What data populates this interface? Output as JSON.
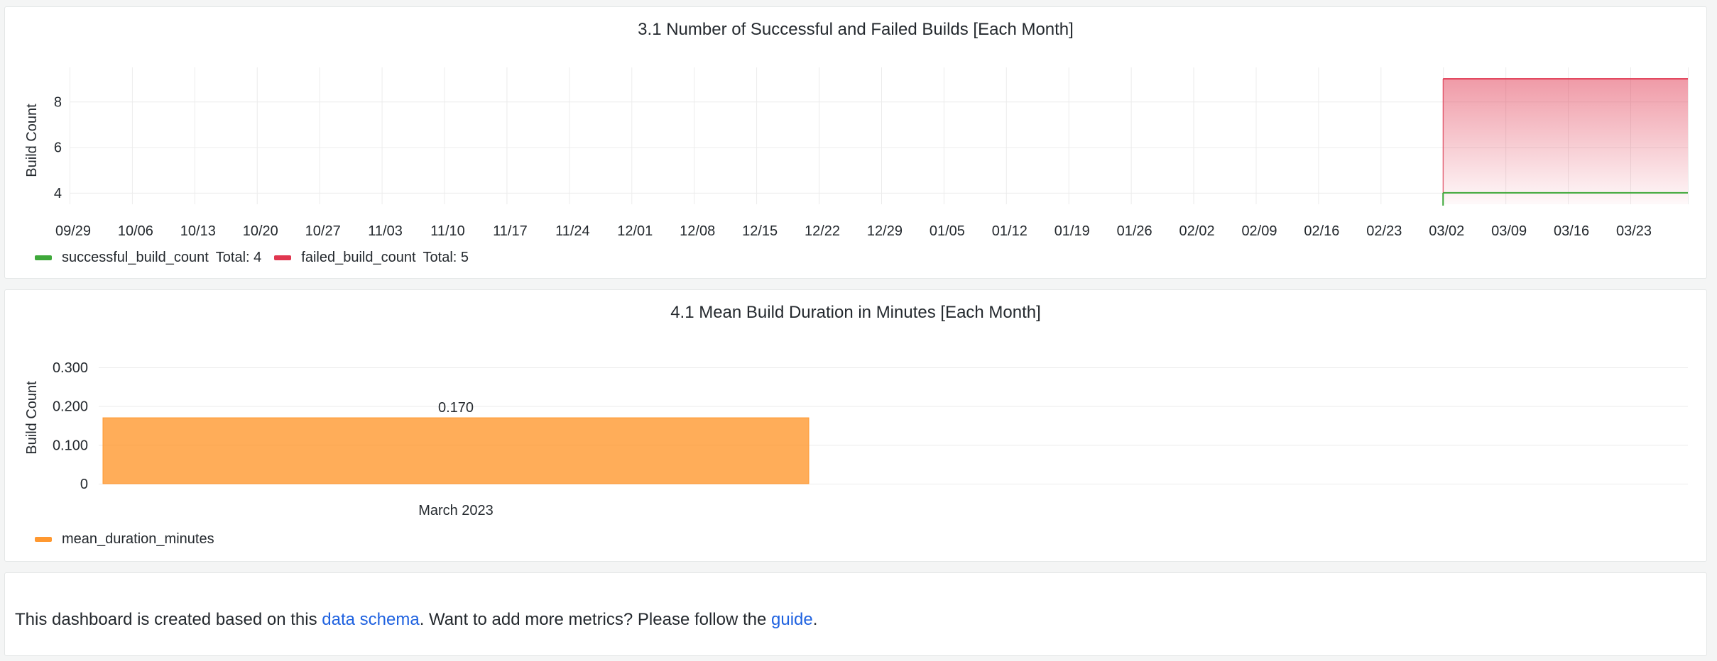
{
  "panels": {
    "builds": {
      "title": "3.1 Number of Successful and Failed Builds [Each Month]",
      "ylabel": "Build Count",
      "legend": [
        {
          "name": "successful_build_count",
          "total_label": "Total: 4",
          "color": "#3ea83a"
        },
        {
          "name": "failed_build_count",
          "total_label": "Total: 5",
          "color": "#e0364f"
        }
      ]
    },
    "duration": {
      "title": "4.1 Mean Build Duration in Minutes [Each Month]",
      "ylabel": "Build Count",
      "legend": [
        {
          "name": "mean_duration_minutes",
          "color": "#ff9830"
        }
      ]
    }
  },
  "footer": {
    "text_before": "This dashboard is created based on this ",
    "link1": "data schema",
    "text_middle": ". Want to add more metrics? Please follow the ",
    "link2": "guide",
    "text_after": "."
  },
  "chart_data": [
    {
      "type": "area",
      "title": "3.1 Number of Successful and Failed Builds [Each Month]",
      "ylabel": "Build Count",
      "xlabel": "",
      "x_ticks": [
        "09/29",
        "10/06",
        "10/13",
        "10/20",
        "10/27",
        "11/03",
        "11/10",
        "11/17",
        "11/24",
        "12/01",
        "12/08",
        "12/15",
        "12/22",
        "12/29",
        "01/05",
        "01/12",
        "01/19",
        "01/26",
        "02/02",
        "02/09",
        "02/16",
        "02/23",
        "03/02",
        "03/09",
        "03/16",
        "03/23"
      ],
      "y_ticks": [
        4,
        6,
        8
      ],
      "ylim": [
        3.5,
        9.5
      ],
      "grid": true,
      "legend_position": "bottom-left",
      "series": [
        {
          "name": "successful_build_count",
          "color": "#3ea83a",
          "start": "03/01",
          "end": "03/31",
          "value": 4,
          "total": 4
        },
        {
          "name": "failed_build_count",
          "color": "#e0364f",
          "start": "03/01",
          "end": "03/31",
          "value": 9,
          "total": 5
        }
      ]
    },
    {
      "type": "bar",
      "title": "4.1 Mean Build Duration in Minutes [Each Month]",
      "ylabel": "Build Count",
      "xlabel": "",
      "categories": [
        "March 2023"
      ],
      "series": [
        {
          "name": "mean_duration_minutes",
          "color": "#ff9830",
          "values": [
            0.17
          ],
          "labels": [
            "0.170"
          ]
        }
      ],
      "y_ticks": [
        "0",
        "0.100",
        "0.200",
        "0.300"
      ],
      "y_tick_values": [
        0,
        0.1,
        0.2,
        0.3
      ],
      "ylim": [
        0,
        0.3
      ],
      "grid": true,
      "legend_position": "bottom-left"
    }
  ]
}
